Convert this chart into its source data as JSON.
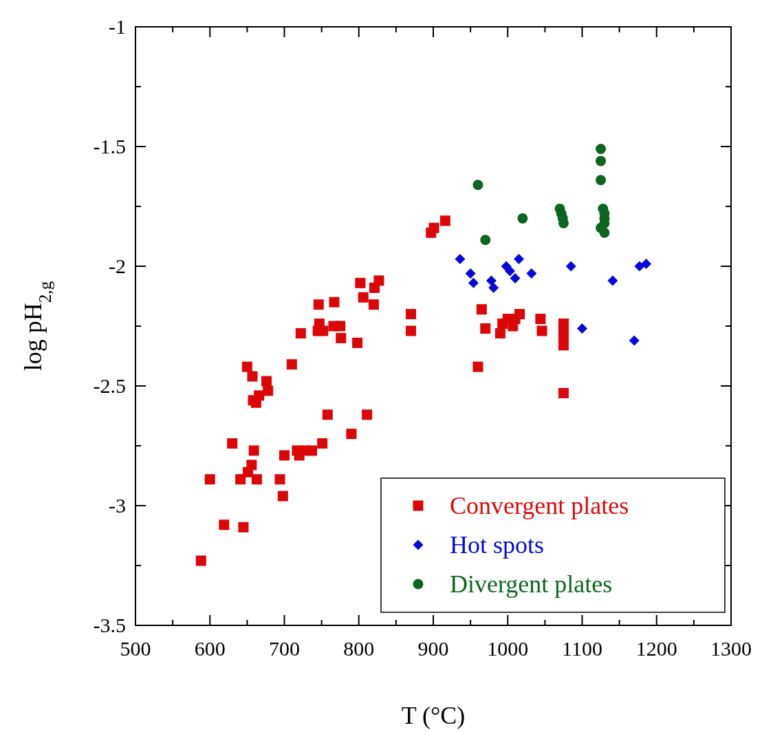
{
  "chart_data": {
    "type": "scatter",
    "xlabel": "T (°C)",
    "ylabel": "log pH$_{2,g}$",
    "xlim": [
      500,
      1300
    ],
    "ylim": [
      -3.5,
      -1
    ],
    "xticks": [
      500,
      {
        "value": 550,
        "label": null
      },
      600,
      {
        "value": 650,
        "label": null
      },
      700,
      {
        "value": 750,
        "label": null
      },
      800,
      {
        "value": 850,
        "label": null
      },
      900,
      {
        "value": 950,
        "label": null
      },
      1000,
      {
        "value": 1050,
        "label": null
      },
      1100,
      {
        "value": 1150,
        "label": null
      },
      1200,
      {
        "value": 1250,
        "label": null
      },
      1300
    ],
    "yticks": [
      -3.5,
      {
        "value": -3.25,
        "label": null
      },
      -3,
      {
        "value": -2.75,
        "label": null
      },
      -2.5,
      {
        "value": -2.25,
        "label": null
      },
      -2,
      {
        "value": -1.75,
        "label": null
      },
      -1.5,
      {
        "value": -1.25,
        "label": null
      },
      -1
    ],
    "grid": false,
    "legend": "bottom right",
    "series": [
      {
        "name": "Convergent plates",
        "color": "#dd0606",
        "marker": "square",
        "x": [
          588,
          600,
          619,
          630,
          641,
          645,
          650,
          651,
          656,
          657,
          658,
          659,
          662,
          663,
          666,
          676,
          678,
          694,
          698,
          700,
          710,
          717,
          720,
          722,
          727,
          737,
          745,
          746,
          747,
          751,
          752,
          758,
          766,
          767,
          775,
          776,
          790,
          798,
          802,
          806,
          811,
          820,
          821,
          827,
          870,
          870,
          897,
          901,
          916,
          960,
          965,
          970,
          990,
          993,
          1000,
          1007,
          1010,
          1016,
          1044,
          1046,
          1075,
          1075,
          1075,
          1075,
          1075
        ],
        "values": [
          -3.23,
          -2.89,
          -3.08,
          -2.74,
          -2.89,
          -3.09,
          -2.42,
          -2.86,
          -2.83,
          -2.46,
          -2.56,
          -2.77,
          -2.57,
          -2.89,
          -2.54,
          -2.48,
          -2.52,
          -2.89,
          -2.96,
          -2.79,
          -2.41,
          -2.77,
          -2.79,
          -2.28,
          -2.77,
          -2.77,
          -2.27,
          -2.16,
          -2.24,
          -2.74,
          -2.27,
          -2.62,
          -2.25,
          -2.15,
          -2.25,
          -2.3,
          -2.7,
          -2.32,
          -2.07,
          -2.13,
          -2.62,
          -2.16,
          -2.09,
          -2.06,
          -2.2,
          -2.27,
          -1.86,
          -1.84,
          -1.81,
          -2.42,
          -2.18,
          -2.26,
          -2.28,
          -2.24,
          -2.22,
          -2.25,
          -2.22,
          -2.2,
          -2.22,
          -2.27,
          -2.24,
          -2.27,
          -2.3,
          -2.33,
          -2.53
        ]
      },
      {
        "name": "Hot spots",
        "color": "#0606dd",
        "marker": "diamond",
        "x": [
          936,
          950,
          954,
          978,
          981,
          998,
          1003,
          1010,
          1015,
          1032,
          1085,
          1100,
          1141,
          1170,
          1177,
          1186
        ],
        "values": [
          -1.97,
          -2.03,
          -2.07,
          -2.06,
          -2.09,
          -2.0,
          -2.02,
          -2.05,
          -1.97,
          -2.03,
          -2.0,
          -2.26,
          -2.06,
          -2.31,
          -2.0,
          -1.99
        ]
      },
      {
        "name": "Divergent plates",
        "color": "#0a6620",
        "marker": "circle",
        "x": [
          960,
          970,
          1020,
          1070,
          1072,
          1074,
          1075,
          1125,
          1125,
          1125,
          1128,
          1130,
          1130,
          1130,
          1125,
          1130
        ],
        "values": [
          -1.66,
          -1.89,
          -1.8,
          -1.76,
          -1.78,
          -1.8,
          -1.82,
          -1.51,
          -1.56,
          -1.64,
          -1.76,
          -1.78,
          -1.8,
          -1.82,
          -1.84,
          -1.86
        ]
      }
    ]
  }
}
